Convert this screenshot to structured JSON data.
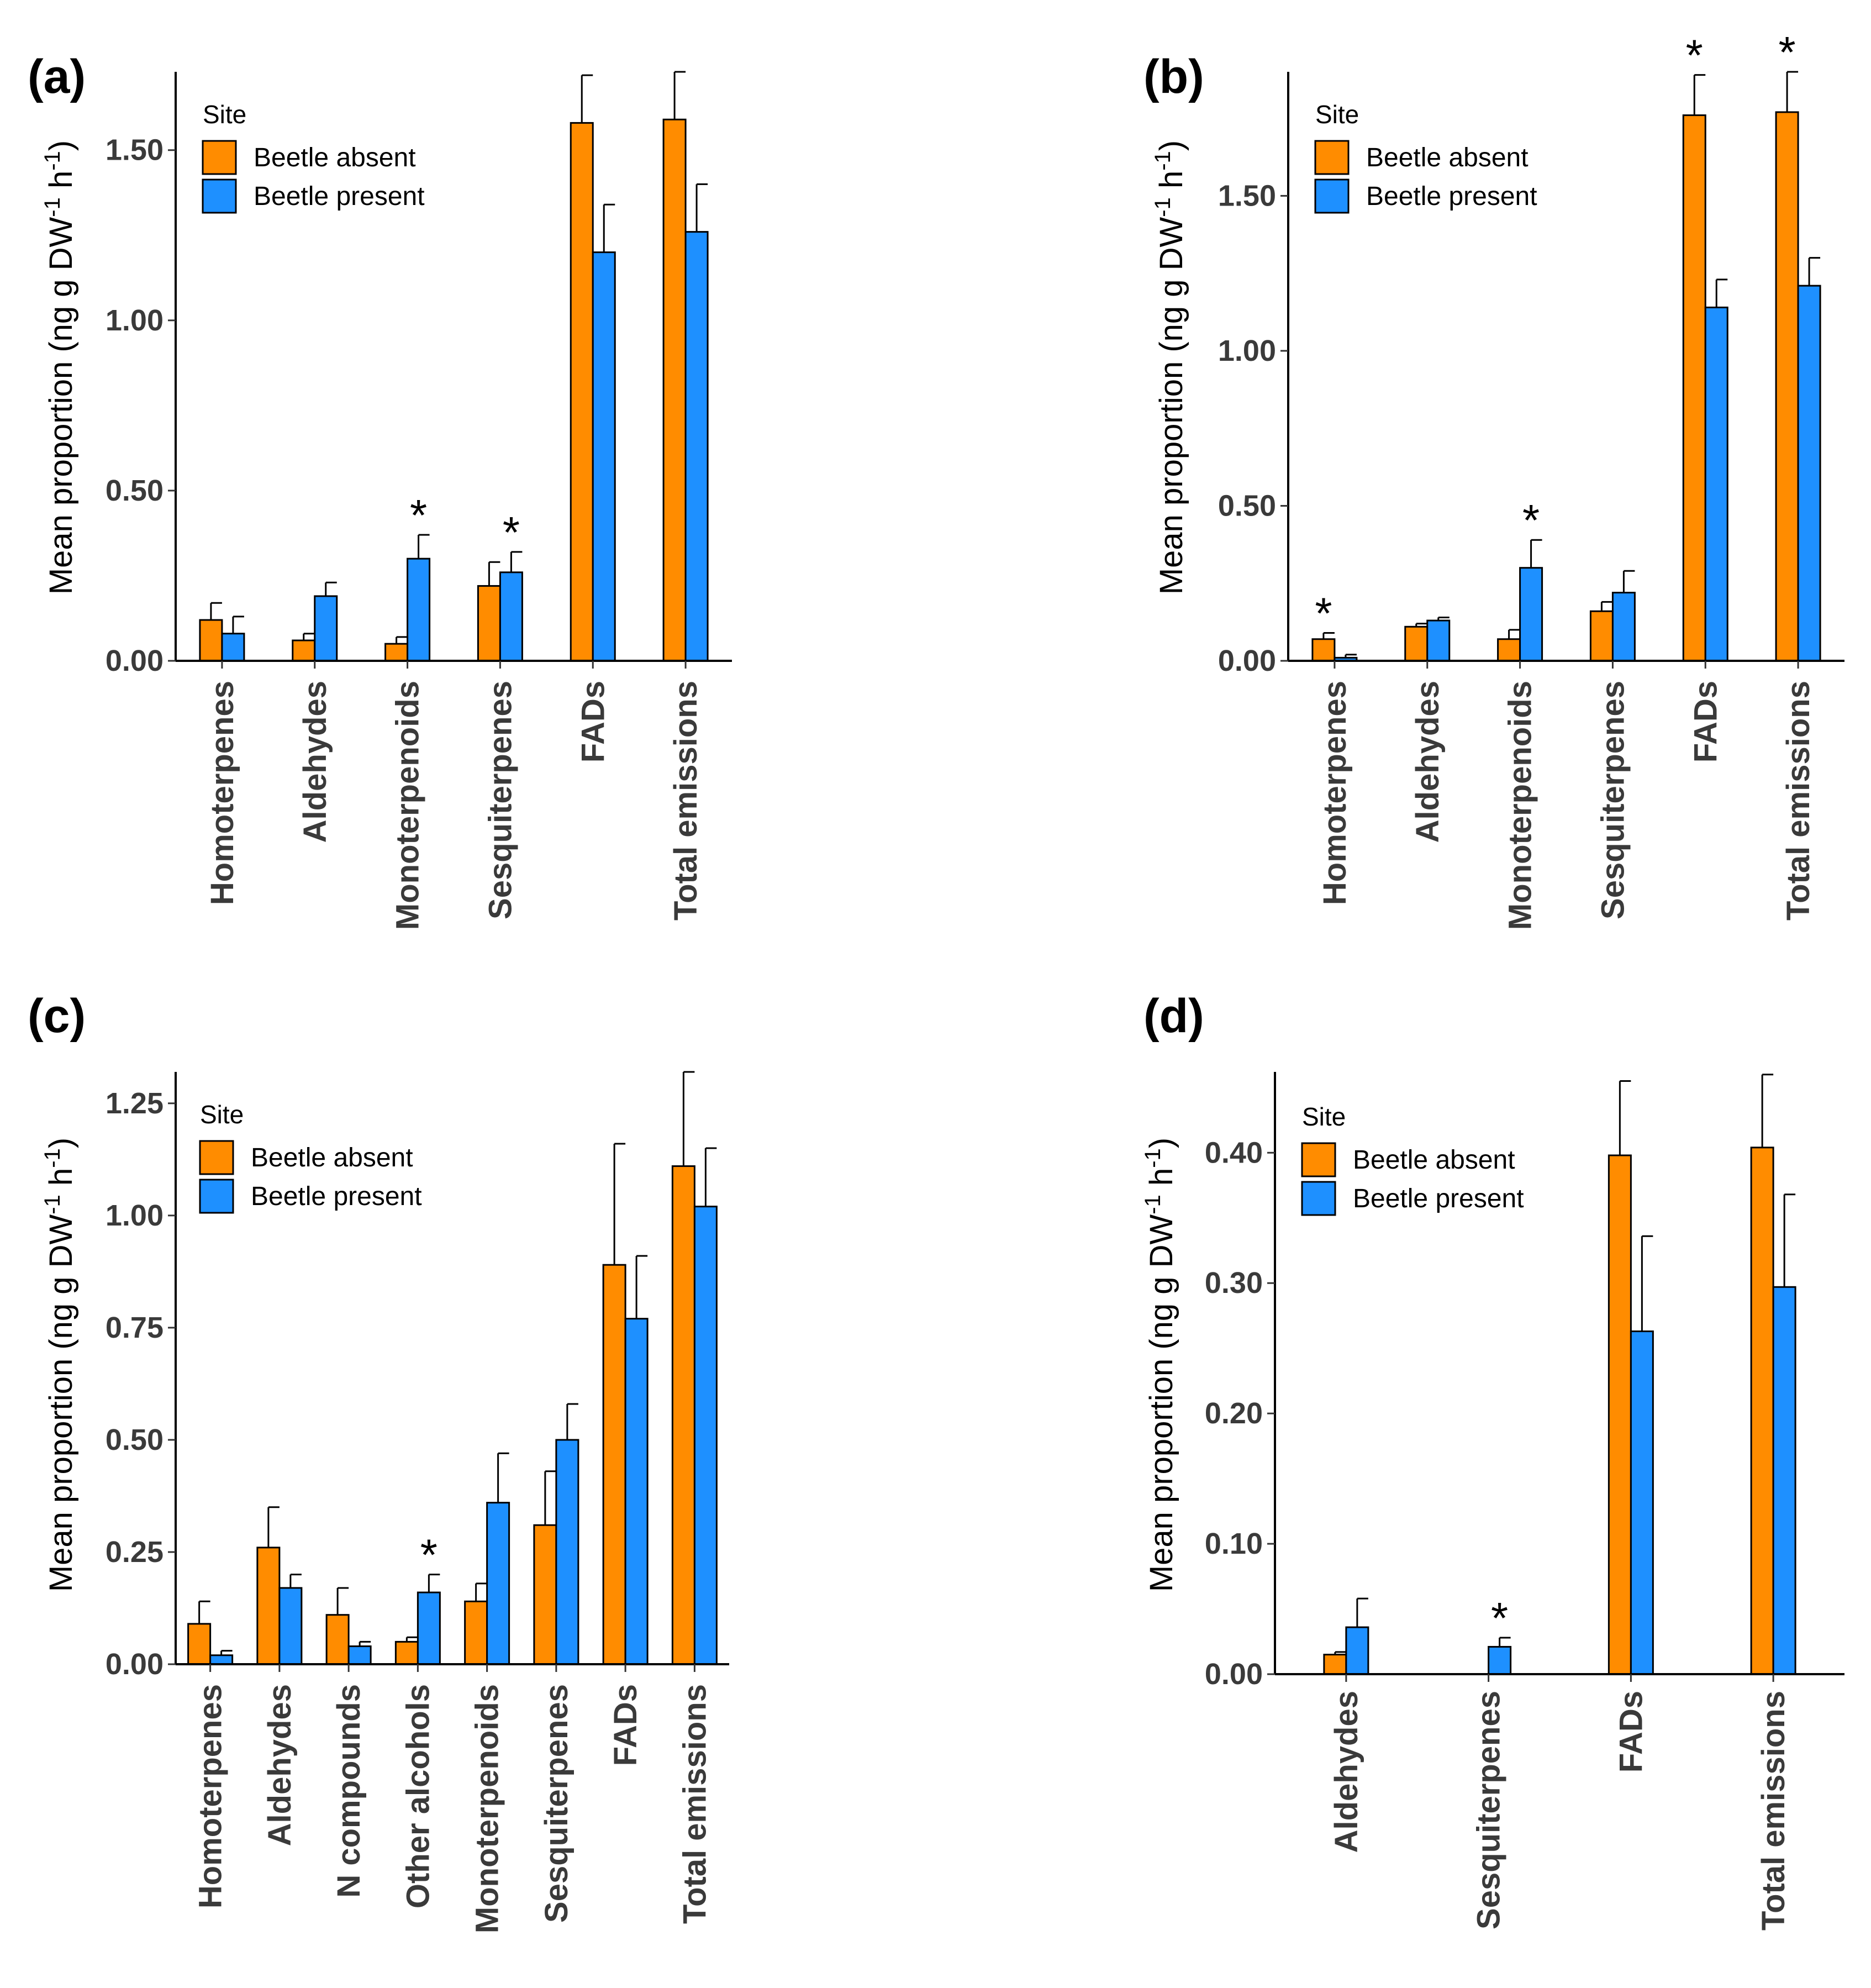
{
  "colors": {
    "absent": "#FF8C00",
    "present": "#1E90FF",
    "axis": "#000000",
    "text": "#3a3a3a"
  },
  "legend": {
    "title": "Site",
    "absent": "Beetle absent",
    "present": "Beetle present"
  },
  "y_title": {
    "main": "Mean proportion (ng g DW",
    "exp1": "-1",
    "mid": " h",
    "exp2": "-1",
    "close": ")"
  },
  "chart_data": [
    {
      "id": "a",
      "panel_label": "(a)",
      "type": "bar",
      "ylim": [
        0,
        1.73
      ],
      "yticks": [
        0,
        0.5,
        1.0,
        1.5
      ],
      "ytick_labels": [
        "0.00",
        "0.50",
        "1.00",
        "1.50"
      ],
      "categories": [
        "Homoterpenes",
        "Aldehydes",
        "Monoterpenoids",
        "Sesquiterpenes",
        "FADs",
        "Total emissions"
      ],
      "series": [
        {
          "name": "Beetle absent",
          "values": [
            0.12,
            0.06,
            0.05,
            0.22,
            1.58,
            1.59
          ],
          "errors": [
            0.05,
            0.02,
            0.02,
            0.07,
            0.14,
            0.14
          ]
        },
        {
          "name": "Beetle present",
          "values": [
            0.08,
            0.19,
            0.3,
            0.26,
            1.2,
            1.26
          ],
          "errors": [
            0.05,
            0.04,
            0.07,
            0.06,
            0.14,
            0.14
          ]
        }
      ],
      "significant": [
        [],
        [],
        [
          1
        ],
        [
          1
        ],
        [],
        []
      ]
    },
    {
      "id": "b",
      "panel_label": "(b)",
      "type": "bar",
      "ylim": [
        0,
        1.9
      ],
      "yticks": [
        0,
        0.5,
        1.0,
        1.5
      ],
      "ytick_labels": [
        "0.00",
        "0.50",
        "1.00",
        "1.50"
      ],
      "categories": [
        "Homoterpenes",
        "Aldehydes",
        "Monoterpenoids",
        "Sesquiterpenes",
        "FADs",
        "Total emissions"
      ],
      "series": [
        {
          "name": "Beetle absent",
          "values": [
            0.07,
            0.11,
            0.07,
            0.16,
            1.76,
            1.77
          ],
          "errors": [
            0.02,
            0.01,
            0.03,
            0.03,
            0.13,
            0.13
          ]
        },
        {
          "name": "Beetle present",
          "values": [
            0.01,
            0.13,
            0.3,
            0.22,
            1.14,
            1.21
          ],
          "errors": [
            0.01,
            0.01,
            0.09,
            0.07,
            0.09,
            0.09
          ]
        }
      ],
      "significant": [
        [
          0
        ],
        [],
        [
          1
        ],
        [],
        [
          0
        ],
        [
          0
        ]
      ]
    },
    {
      "id": "c",
      "panel_label": "(c)",
      "type": "bar",
      "ylim": [
        0,
        1.32
      ],
      "yticks": [
        0,
        0.25,
        0.5,
        0.75,
        1.0,
        1.25
      ],
      "ytick_labels": [
        "0.00",
        "0.25",
        "0.50",
        "0.75",
        "1.00",
        "1.25"
      ],
      "categories": [
        "Homoterpenes",
        "Aldehydes",
        "N compounds",
        "Other alcohols",
        "Monoterpenoids",
        "Sesquiterpenes",
        "FADs",
        "Total emissions"
      ],
      "series": [
        {
          "name": "Beetle absent",
          "values": [
            0.09,
            0.26,
            0.11,
            0.05,
            0.14,
            0.31,
            0.89,
            1.11
          ],
          "errors": [
            0.05,
            0.09,
            0.06,
            0.01,
            0.04,
            0.12,
            0.27,
            0.21
          ]
        },
        {
          "name": "Beetle present",
          "values": [
            0.02,
            0.17,
            0.04,
            0.16,
            0.36,
            0.5,
            0.77,
            1.02
          ],
          "errors": [
            0.01,
            0.03,
            0.01,
            0.04,
            0.11,
            0.08,
            0.14,
            0.13
          ]
        }
      ],
      "significant": [
        [],
        [],
        [],
        [
          1
        ],
        [],
        [],
        [],
        []
      ]
    },
    {
      "id": "d",
      "panel_label": "(d)",
      "type": "bar",
      "ylim": [
        0,
        0.462
      ],
      "yticks": [
        0,
        0.1,
        0.2,
        0.3,
        0.4
      ],
      "ytick_labels": [
        "0.00",
        "0.10",
        "0.20",
        "0.30",
        "0.40"
      ],
      "categories": [
        "Aldehydes",
        "Sesquiterpenes",
        "FADs",
        "Total emissions"
      ],
      "series": [
        {
          "name": "Beetle absent",
          "values": [
            0.015,
            0.0,
            0.398,
            0.404
          ],
          "errors": [
            0.002,
            0.0,
            0.057,
            0.056
          ]
        },
        {
          "name": "Beetle present",
          "values": [
            0.036,
            0.021,
            0.263,
            0.297
          ],
          "errors": [
            0.022,
            0.007,
            0.073,
            0.071
          ]
        }
      ],
      "significant": [
        [],
        [
          1
        ],
        [],
        []
      ]
    }
  ]
}
